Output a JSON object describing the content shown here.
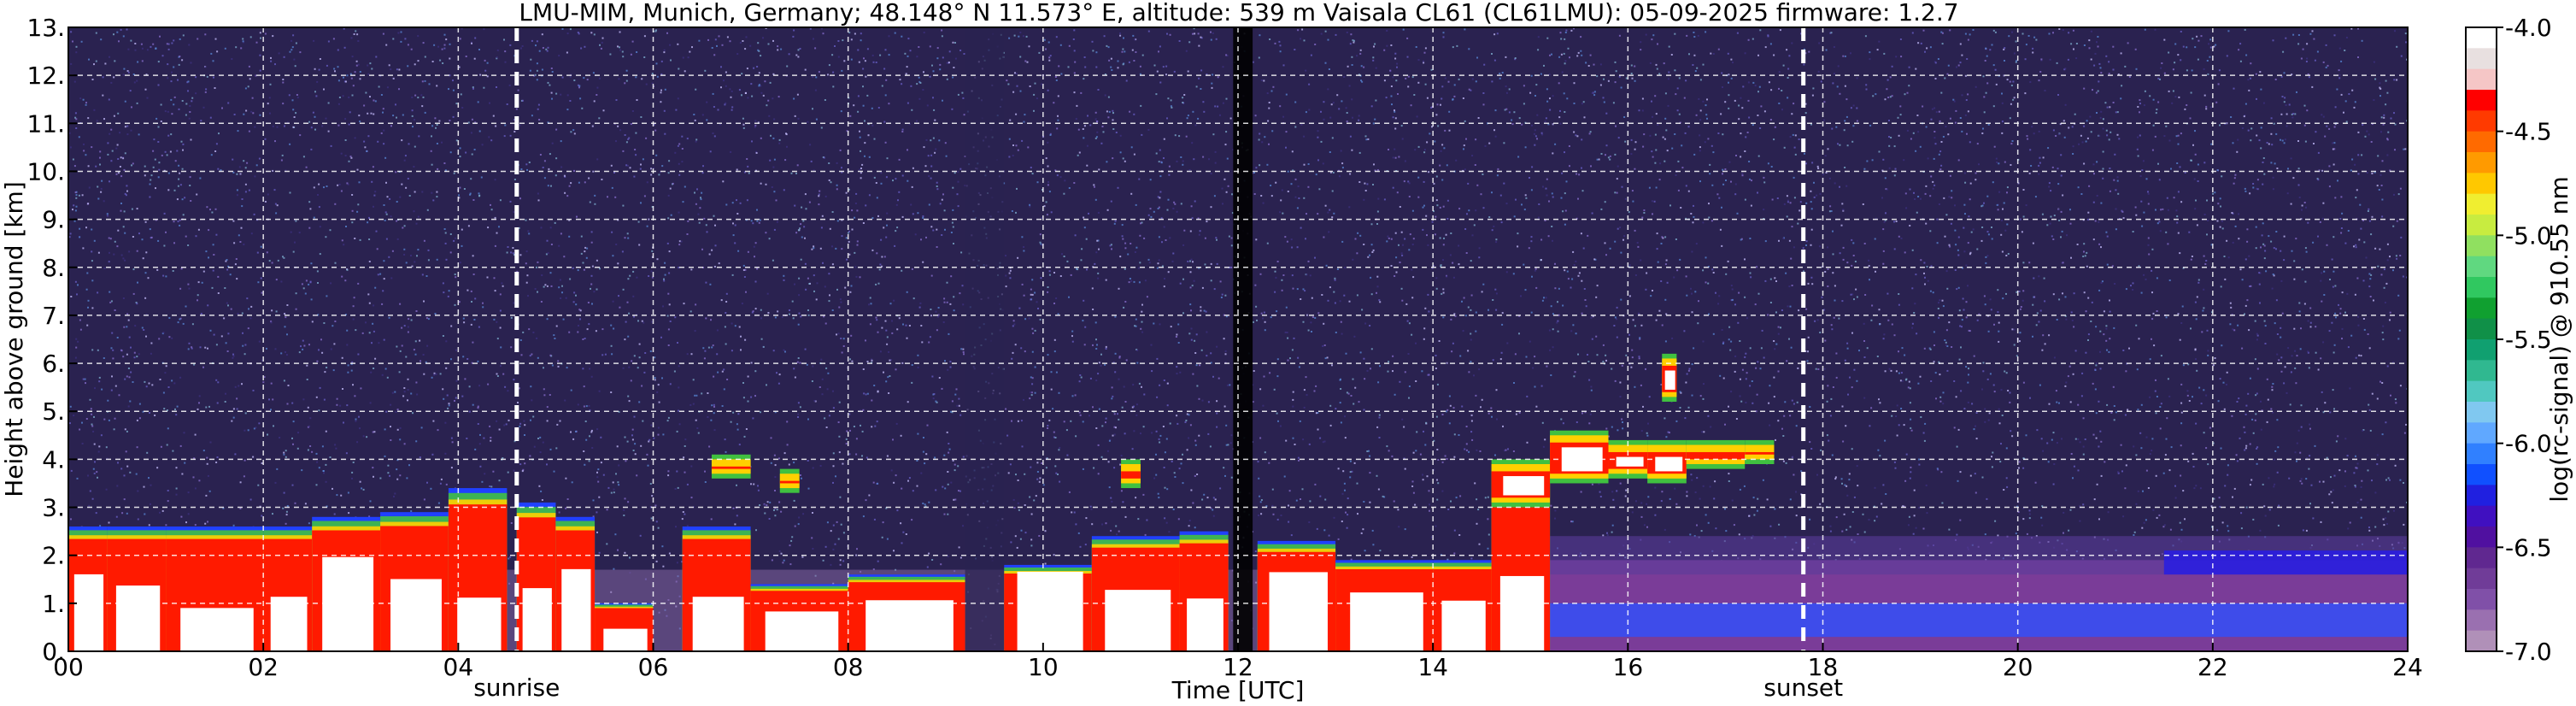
{
  "chart_data": {
    "type": "heatmap",
    "title": "LMU-MIM, Munich, Germany; 48.148° N 11.573° E, altitude: 539 m    Vaisala CL61 (CL61LMU): 05-09-2025    firmware: 1.2.7",
    "xlabel": "Time [UTC]",
    "ylabel": "Height above ground [km]",
    "xlim": [
      0,
      24
    ],
    "ylim": [
      0,
      13
    ],
    "xticks": [
      "00",
      "02",
      "04",
      "06",
      "08",
      "10",
      "12",
      "14",
      "16",
      "18",
      "20",
      "22",
      "24"
    ],
    "yticks": [
      "0.",
      "1.",
      "2.",
      "3.",
      "4.",
      "5.",
      "6.",
      "7.",
      "8.",
      "9.",
      "10.",
      "11.",
      "12.",
      "13."
    ],
    "grid": true,
    "colorbar": {
      "label": "log(rc-signal) @ 910.55 nm",
      "min": -7.0,
      "max": -4.0,
      "ticks": [
        "-4.0",
        "-4.5",
        "-5.0",
        "-5.5",
        "-6.0",
        "-6.5",
        "-7.0"
      ],
      "colors": [
        "#ffffff",
        "#e8e0e0",
        "#f5c6c6",
        "#ff0000",
        "#ff3a00",
        "#ff6a00",
        "#ff9a00",
        "#ffc800",
        "#f0ee30",
        "#c8ec40",
        "#90e060",
        "#60d880",
        "#30c860",
        "#10a030",
        "#109048",
        "#10a070",
        "#30b890",
        "#50c8c0",
        "#80c8f0",
        "#60a8ff",
        "#3080ff",
        "#1050ff",
        "#2020e0",
        "#4010c0",
        "#5010a0",
        "#602890",
        "#703c98",
        "#8050a8",
        "#9a70b0",
        "#b090b8"
      ]
    },
    "markers": [
      {
        "label": "sunrise",
        "time": 4.6
      },
      {
        "label": "sunset",
        "time": 17.8
      }
    ],
    "layers": [
      {
        "name": "background",
        "color": "#2a2250"
      },
      {
        "name": "noise",
        "color": "#6a60c8"
      },
      {
        "name": "cloud-core",
        "color": "#ffffff"
      },
      {
        "name": "cloud-edge",
        "color": "#ff1a00"
      },
      {
        "name": "cloud-mid",
        "color": "#ffd000"
      },
      {
        "name": "cloud-green",
        "color": "#40c040"
      },
      {
        "name": "cloud-blue",
        "color": "#2040ff"
      },
      {
        "name": "aerosol",
        "color": "#7a3c98"
      }
    ]
  }
}
